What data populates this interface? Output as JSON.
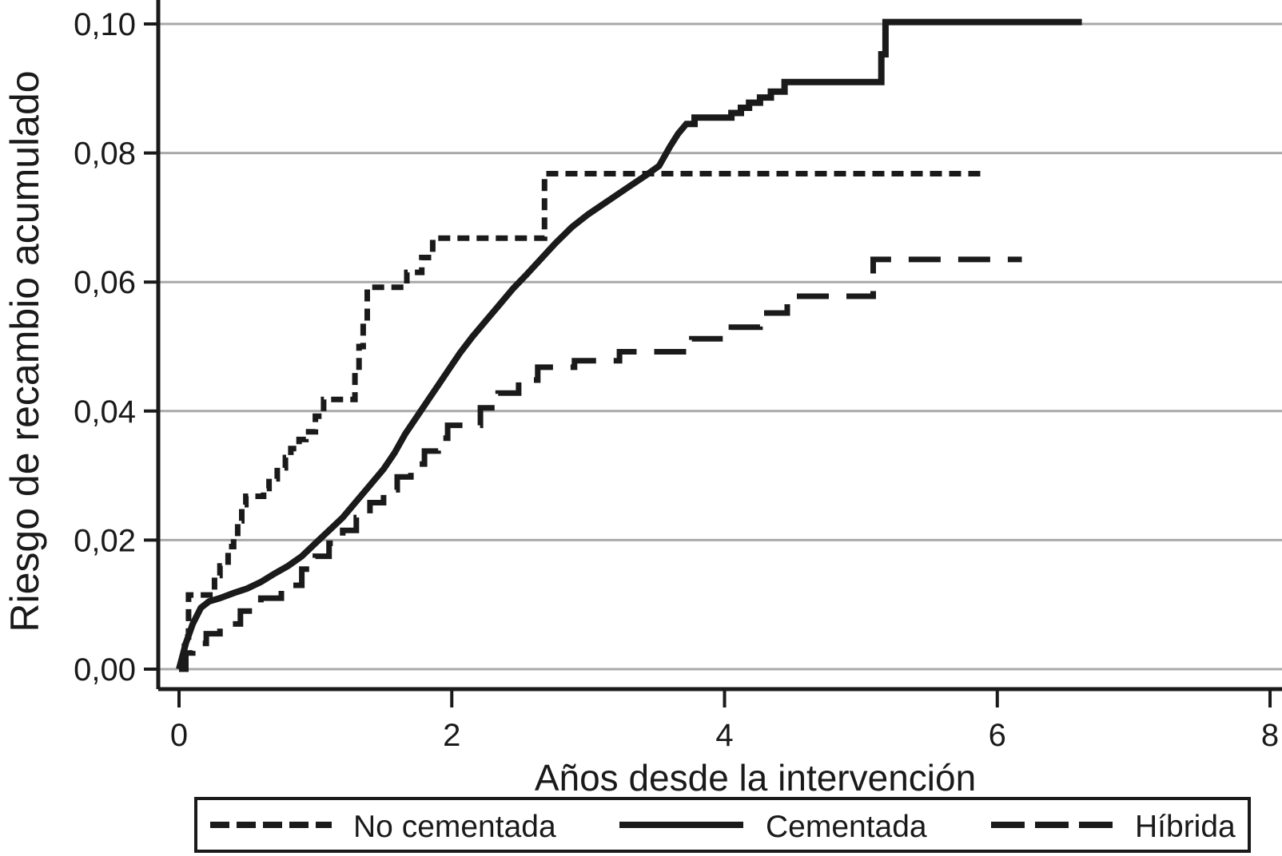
{
  "chart_data": {
    "type": "line",
    "subtype": "cumulative-incidence step curves",
    "title": "",
    "xlabel": "Años desde la intervención",
    "ylabel": "Riesgo de recambio acumulado",
    "xlim": [
      0,
      8.1
    ],
    "ylim": [
      0,
      0.104
    ],
    "grid": "horizontal gridlines at every y tick",
    "legend_position": "bottom, boxed, horizontal",
    "xticks": [
      {
        "v": 0,
        "label": "0"
      },
      {
        "v": 2,
        "label": "2"
      },
      {
        "v": 4,
        "label": "4"
      },
      {
        "v": 6,
        "label": "6"
      },
      {
        "v": 8,
        "label": "8"
      }
    ],
    "yticks": [
      {
        "v": 0.0,
        "label": "0,00"
      },
      {
        "v": 0.02,
        "label": "0,02"
      },
      {
        "v": 0.04,
        "label": "0,04"
      },
      {
        "v": 0.06,
        "label": "0,06"
      },
      {
        "v": 0.08,
        "label": "0,08"
      },
      {
        "v": 0.1,
        "label": "0,10"
      }
    ],
    "series": [
      {
        "name": "No cementada",
        "dash": "short",
        "mode": "step",
        "points": [
          [
            0,
            0
          ],
          [
            0.04,
            0.005
          ],
          [
            0.07,
            0.0115
          ],
          [
            0.26,
            0.0145
          ],
          [
            0.3,
            0.016
          ],
          [
            0.36,
            0.019
          ],
          [
            0.4,
            0.0205
          ],
          [
            0.43,
            0.023
          ],
          [
            0.46,
            0.0255
          ],
          [
            0.49,
            0.0268
          ],
          [
            0.62,
            0.028
          ],
          [
            0.66,
            0.0295
          ],
          [
            0.72,
            0.0312
          ],
          [
            0.78,
            0.0328
          ],
          [
            0.82,
            0.0342
          ],
          [
            0.88,
            0.0356
          ],
          [
            0.93,
            0.0368
          ],
          [
            1.0,
            0.0392
          ],
          [
            1.06,
            0.0418
          ],
          [
            1.29,
            0.046
          ],
          [
            1.32,
            0.05
          ],
          [
            1.35,
            0.054
          ],
          [
            1.38,
            0.0592
          ],
          [
            1.67,
            0.0615
          ],
          [
            1.78,
            0.0638
          ],
          [
            1.86,
            0.0668
          ],
          [
            2.68,
            0.0768
          ],
          [
            5.9,
            0.0768
          ]
        ]
      },
      {
        "name": "Cementada",
        "dash": "solid",
        "mode": "line-then-step",
        "points": [
          [
            0,
            0
          ],
          [
            0.05,
            0.004
          ],
          [
            0.1,
            0.007
          ],
          [
            0.16,
            0.0095
          ],
          [
            0.22,
            0.0105
          ],
          [
            0.3,
            0.011
          ],
          [
            0.4,
            0.0118
          ],
          [
            0.5,
            0.0125
          ],
          [
            0.6,
            0.0135
          ],
          [
            0.7,
            0.0148
          ],
          [
            0.8,
            0.016
          ],
          [
            0.9,
            0.0175
          ],
          [
            1.0,
            0.0195
          ],
          [
            1.1,
            0.0215
          ],
          [
            1.2,
            0.0235
          ],
          [
            1.3,
            0.026
          ],
          [
            1.4,
            0.0285
          ],
          [
            1.5,
            0.031
          ],
          [
            1.58,
            0.0335
          ],
          [
            1.66,
            0.0365
          ],
          [
            1.74,
            0.039
          ],
          [
            1.82,
            0.0415
          ],
          [
            1.9,
            0.044
          ],
          [
            1.98,
            0.0465
          ],
          [
            2.06,
            0.049
          ],
          [
            2.15,
            0.0515
          ],
          [
            2.25,
            0.054
          ],
          [
            2.35,
            0.0565
          ],
          [
            2.45,
            0.059
          ],
          [
            2.55,
            0.0612
          ],
          [
            2.65,
            0.0635
          ],
          [
            2.76,
            0.066
          ],
          [
            2.88,
            0.0685
          ],
          [
            3.0,
            0.0705
          ],
          [
            3.14,
            0.0725
          ],
          [
            3.28,
            0.0745
          ],
          [
            3.42,
            0.0765
          ],
          [
            3.52,
            0.078
          ],
          [
            3.6,
            0.081
          ],
          [
            3.66,
            0.083
          ],
          [
            3.72,
            0.0845
          ],
          [
            3.78,
            0.0855
          ],
          [
            4.05,
            0.0862
          ],
          [
            4.12,
            0.087
          ],
          [
            4.18,
            0.0878
          ],
          [
            4.26,
            0.0886
          ],
          [
            4.34,
            0.0895
          ],
          [
            4.44,
            0.091
          ],
          [
            5.15,
            0.0953
          ],
          [
            5.18,
            0.1003
          ],
          [
            6.62,
            0.1003
          ]
        ],
        "step_from_x": 3.72
      },
      {
        "name": "Híbrida",
        "dash": "long",
        "mode": "step",
        "points": [
          [
            0,
            0
          ],
          [
            0.05,
            0.0025
          ],
          [
            0.1,
            0.004
          ],
          [
            0.2,
            0.0055
          ],
          [
            0.3,
            0.007
          ],
          [
            0.45,
            0.009
          ],
          [
            0.6,
            0.011
          ],
          [
            0.75,
            0.013
          ],
          [
            0.9,
            0.0155
          ],
          [
            1.0,
            0.0175
          ],
          [
            1.1,
            0.0195
          ],
          [
            1.2,
            0.0215
          ],
          [
            1.3,
            0.0235
          ],
          [
            1.4,
            0.0258
          ],
          [
            1.5,
            0.0278
          ],
          [
            1.6,
            0.0298
          ],
          [
            1.7,
            0.0318
          ],
          [
            1.8,
            0.0338
          ],
          [
            1.9,
            0.0358
          ],
          [
            1.97,
            0.0378
          ],
          [
            2.21,
            0.0405
          ],
          [
            2.34,
            0.0428
          ],
          [
            2.49,
            0.0448
          ],
          [
            2.63,
            0.0468
          ],
          [
            2.9,
            0.0478
          ],
          [
            3.23,
            0.0492
          ],
          [
            3.76,
            0.0512
          ],
          [
            4.05,
            0.053
          ],
          [
            4.26,
            0.0552
          ],
          [
            4.46,
            0.0578
          ],
          [
            5.09,
            0.0635
          ],
          [
            6.18,
            0.0635
          ]
        ]
      }
    ],
    "legend": [
      {
        "label": "No cementada",
        "dash": "short"
      },
      {
        "label": "Cementada",
        "dash": "solid"
      },
      {
        "label": "Híbrida",
        "dash": "long"
      }
    ]
  },
  "colors": {
    "line": "#1a1a1a",
    "grid": "#a9a9a9",
    "background": "#ffffff"
  }
}
